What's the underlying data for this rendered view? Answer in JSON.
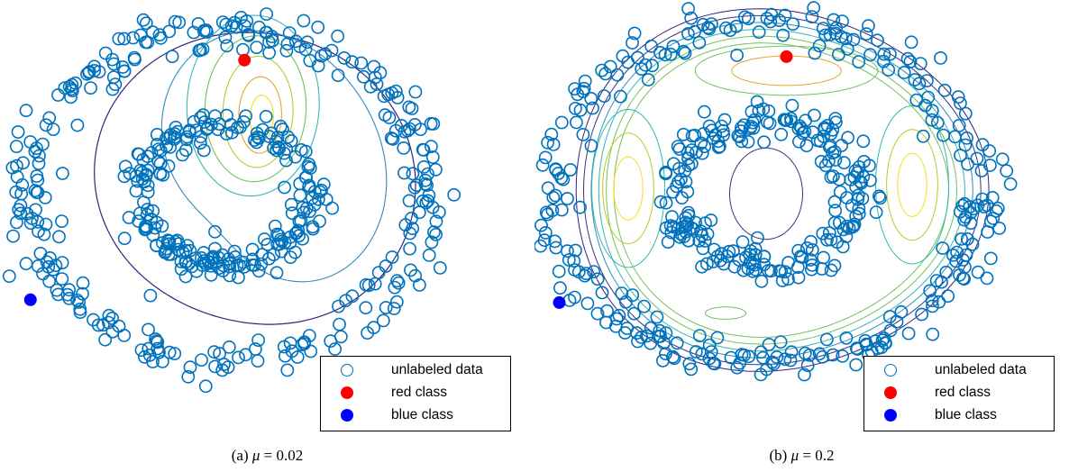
{
  "colors": {
    "marker": "#0072BD",
    "red_point": "#ff0000",
    "blue_point": "#0000ff",
    "contour_levels": [
      "#3b1f7a",
      "#37357f",
      "#2e8cc0",
      "#36b6b4",
      "#6fc35a",
      "#b2cd2c",
      "#e3a62a",
      "#f2e11e"
    ]
  },
  "chart_data": [
    {
      "type": "scatter",
      "panel": "a",
      "caption_prefix": "(a)",
      "caption_symbol": "μ",
      "caption_value": "= 0.02",
      "mu": 0.02,
      "series": [
        {
          "name": "unlabeled data",
          "marker": "hollow-circle",
          "structure": "two concentric noisy rings (inner ring + outer ring)"
        },
        {
          "name": "red class",
          "marker": "filled-circle",
          "points": [
            [
              0.1,
              0.78
            ]
          ]
        },
        {
          "name": "blue class",
          "marker": "filled-circle",
          "points": [
            [
              -1.02,
              -0.62
            ]
          ]
        }
      ],
      "contours": "level sets of learned decision function; maximum near red point",
      "legend": {
        "position": "bottom-right",
        "entries": [
          "unlabeled data",
          "red class",
          "blue class"
        ]
      },
      "axes": "hidden"
    },
    {
      "type": "scatter",
      "panel": "b",
      "caption_prefix": "(b)",
      "caption_symbol": "μ",
      "caption_value": "= 0.2",
      "mu": 0.2,
      "series": [
        {
          "name": "unlabeled data",
          "marker": "hollow-circle",
          "structure": "two concentric noisy rings (inner ring + outer ring)"
        },
        {
          "name": "red class",
          "marker": "filled-circle",
          "points": [
            [
              0.1,
              0.78
            ]
          ]
        },
        {
          "name": "blue class",
          "marker": "filled-circle",
          "points": [
            [
              -1.02,
              -0.62
            ]
          ]
        }
      ],
      "contours": "level sets of learned decision function; smoother, ring-shaped between clusters",
      "legend": {
        "position": "bottom-right",
        "entries": [
          "unlabeled data",
          "red class",
          "blue class"
        ]
      },
      "axes": "hidden"
    }
  ]
}
